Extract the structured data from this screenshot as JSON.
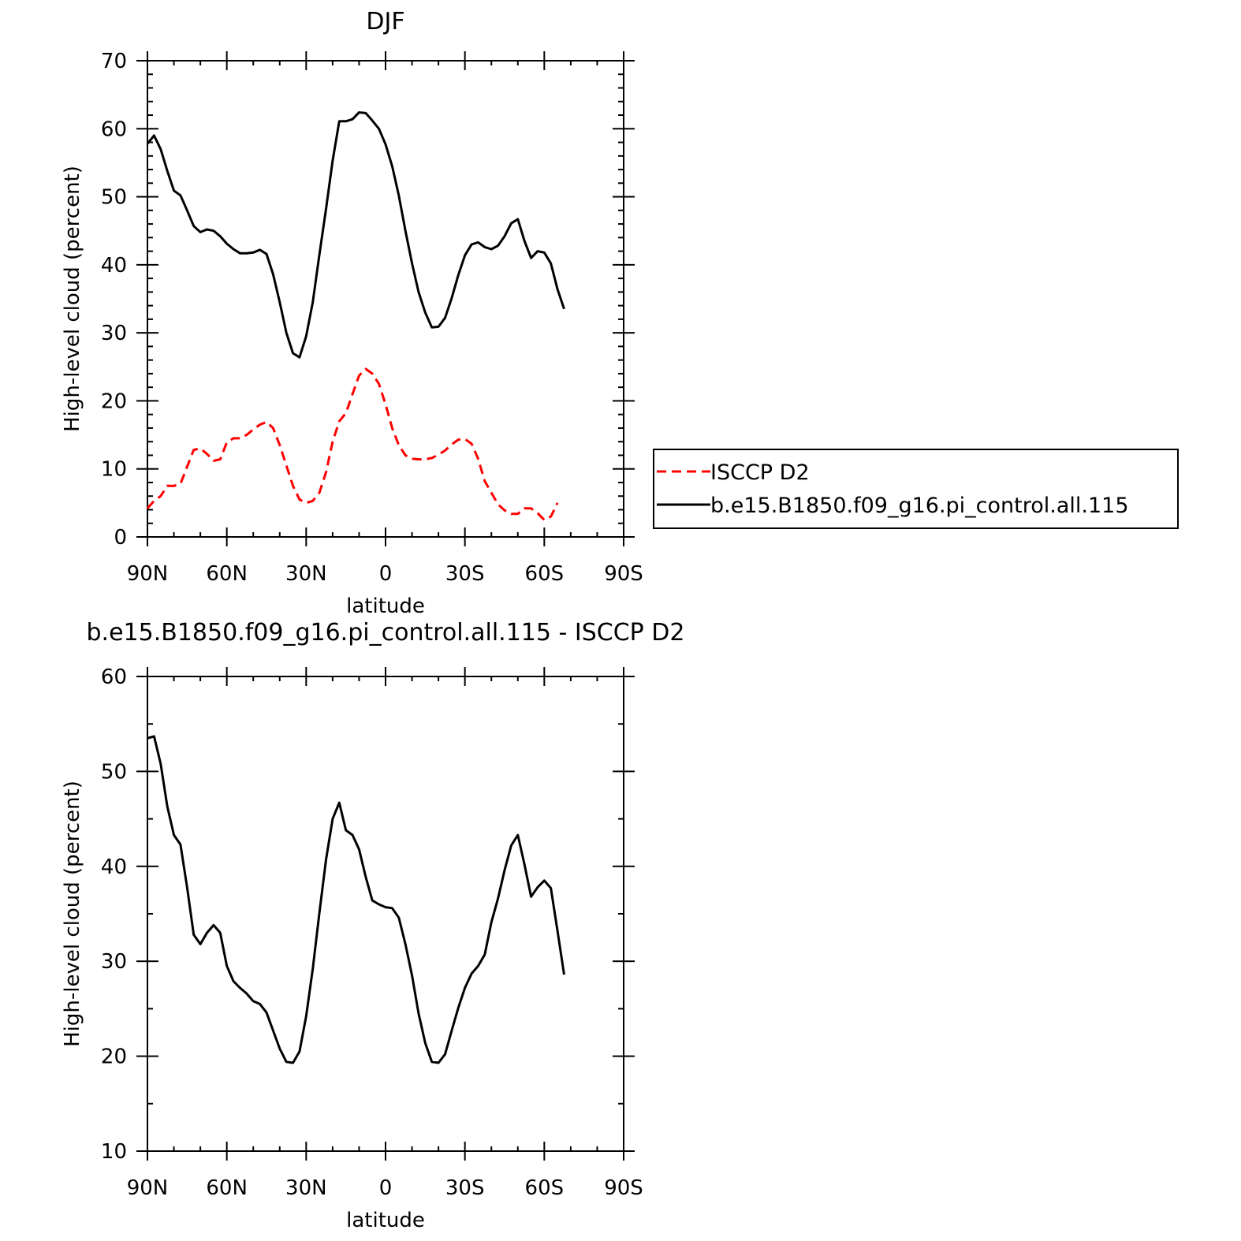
{
  "chart_data": [
    {
      "type": "line",
      "title": "DJF",
      "xlabel": "latitude",
      "ylabel": "High-level cloud (percent)",
      "xlim": [
        90,
        -90
      ],
      "ylim": [
        0,
        70
      ],
      "x_ticks": [
        {
          "value": 90,
          "label": "90N"
        },
        {
          "value": 60,
          "label": "60N"
        },
        {
          "value": 30,
          "label": "30N"
        },
        {
          "value": 0,
          "label": "0"
        },
        {
          "value": -30,
          "label": "30S"
        },
        {
          "value": -60,
          "label": "60S"
        },
        {
          "value": -90,
          "label": "90S"
        }
      ],
      "y_ticks": [
        {
          "value": 0,
          "label": "0"
        },
        {
          "value": 10,
          "label": "10"
        },
        {
          "value": 20,
          "label": "20"
        },
        {
          "value": 30,
          "label": "30"
        },
        {
          "value": 40,
          "label": "40"
        },
        {
          "value": 50,
          "label": "50"
        },
        {
          "value": 60,
          "label": "60"
        },
        {
          "value": 70,
          "label": "70"
        }
      ],
      "grid": false,
      "legend": {
        "placement": "right"
      },
      "series": [
        {
          "name": "ISCCP D2",
          "color": "#ff0000",
          "style": "dashed",
          "points": [
            [
              90,
              4.2
            ],
            [
              87.5,
              5.3
            ],
            [
              85,
              6.0
            ],
            [
              82.5,
              7.5
            ],
            [
              80,
              7.5
            ],
            [
              77.5,
              7.8
            ],
            [
              75,
              10.3
            ],
            [
              72.5,
              12.8
            ],
            [
              70,
              13.0
            ],
            [
              67.5,
              12.2
            ],
            [
              65,
              11.2
            ],
            [
              62.5,
              11.4
            ],
            [
              60,
              13.9
            ],
            [
              57.5,
              14.5
            ],
            [
              55,
              14.5
            ],
            [
              52.5,
              15.0
            ],
            [
              50,
              15.8
            ],
            [
              47.5,
              16.5
            ],
            [
              45,
              16.9
            ],
            [
              42.5,
              16.0
            ],
            [
              40,
              13.5
            ],
            [
              37.5,
              10.5
            ],
            [
              35,
              7.5
            ],
            [
              32.5,
              5.5
            ],
            [
              30,
              5.0
            ],
            [
              27.5,
              5.3
            ],
            [
              25,
              6.5
            ],
            [
              22.5,
              9.5
            ],
            [
              20,
              14.0
            ],
            [
              17.5,
              17.0
            ],
            [
              15,
              18.2
            ],
            [
              12.5,
              21.0
            ],
            [
              10,
              23.7
            ],
            [
              7.5,
              24.7
            ],
            [
              5,
              24.0
            ],
            [
              2.5,
              22.5
            ],
            [
              0,
              19.5
            ],
            [
              -2.5,
              16.0
            ],
            [
              -5,
              13.5
            ],
            [
              -7.5,
              12.0
            ],
            [
              -10,
              11.5
            ],
            [
              -12.5,
              11.4
            ],
            [
              -15,
              11.4
            ],
            [
              -17.5,
              11.6
            ],
            [
              -20,
              12.1
            ],
            [
              -22.5,
              12.7
            ],
            [
              -25,
              13.6
            ],
            [
              -27.5,
              14.3
            ],
            [
              -30,
              14.4
            ],
            [
              -32.5,
              13.7
            ],
            [
              -35,
              11.5
            ],
            [
              -37.5,
              8.2
            ],
            [
              -40,
              6.5
            ],
            [
              -42.5,
              4.8
            ],
            [
              -45,
              3.9
            ],
            [
              -47.5,
              3.4
            ],
            [
              -50,
              3.4
            ],
            [
              -52.5,
              4.2
            ],
            [
              -55,
              4.2
            ],
            [
              -57.5,
              3.5
            ],
            [
              -60,
              2.5
            ],
            [
              -62.5,
              3.0
            ],
            [
              -65,
              5.0
            ]
          ]
        },
        {
          "name": "b.e15.B1850.f09_g16.pi_control.all.115",
          "color": "#000000",
          "style": "solid",
          "points": [
            [
              90,
              57.8
            ],
            [
              87.5,
              59.0
            ],
            [
              85,
              57.0
            ],
            [
              82.5,
              53.8
            ],
            [
              80,
              50.9
            ],
            [
              77.5,
              50.2
            ],
            [
              75,
              48.0
            ],
            [
              72.5,
              45.7
            ],
            [
              70,
              44.8
            ],
            [
              67.5,
              45.2
            ],
            [
              65,
              45.0
            ],
            [
              62.5,
              44.2
            ],
            [
              60,
              43.1
            ],
            [
              57.5,
              42.3
            ],
            [
              55,
              41.7
            ],
            [
              52.5,
              41.7
            ],
            [
              50,
              41.8
            ],
            [
              47.5,
              42.2
            ],
            [
              45,
              41.6
            ],
            [
              42.5,
              38.6
            ],
            [
              40,
              34.5
            ],
            [
              37.5,
              30.0
            ],
            [
              35,
              27.0
            ],
            [
              32.5,
              26.4
            ],
            [
              30,
              29.5
            ],
            [
              27.5,
              34.5
            ],
            [
              25,
              41.5
            ],
            [
              22.5,
              48.2
            ],
            [
              20,
              55.3
            ],
            [
              17.5,
              61.1
            ],
            [
              15,
              61.1
            ],
            [
              12.5,
              61.4
            ],
            [
              10,
              62.4
            ],
            [
              7.5,
              62.3
            ],
            [
              5,
              61.2
            ],
            [
              2.5,
              60.0
            ],
            [
              0,
              57.7
            ],
            [
              -2.5,
              54.5
            ],
            [
              -5,
              50.2
            ],
            [
              -7.5,
              45.0
            ],
            [
              -10,
              40.2
            ],
            [
              -12.5,
              36.0
            ],
            [
              -15,
              33.0
            ],
            [
              -17.5,
              30.8
            ],
            [
              -20,
              30.9
            ],
            [
              -22.5,
              32.2
            ],
            [
              -25,
              35.1
            ],
            [
              -27.5,
              38.5
            ],
            [
              -30,
              41.4
            ],
            [
              -32.5,
              43.0
            ],
            [
              -35,
              43.3
            ],
            [
              -37.5,
              42.6
            ],
            [
              -40,
              42.3
            ],
            [
              -42.5,
              42.8
            ],
            [
              -45,
              44.2
            ],
            [
              -47.5,
              46.1
            ],
            [
              -50,
              46.7
            ],
            [
              -52.5,
              43.5
            ],
            [
              -55,
              41.0
            ],
            [
              -57.5,
              42.0
            ],
            [
              -60,
              41.8
            ],
            [
              -62.5,
              40.2
            ],
            [
              -65,
              36.4
            ],
            [
              -67.5,
              33.5
            ]
          ]
        }
      ]
    },
    {
      "type": "line",
      "title": "b.e15.B1850.f09_g16.pi_control.all.115 - ISCCP D2",
      "xlabel": "latitude",
      "ylabel": "High-level cloud (percent)",
      "xlim": [
        90,
        -90
      ],
      "ylim": [
        10,
        60
      ],
      "x_ticks": [
        {
          "value": 90,
          "label": "90N"
        },
        {
          "value": 60,
          "label": "60N"
        },
        {
          "value": 30,
          "label": "30N"
        },
        {
          "value": 0,
          "label": "0"
        },
        {
          "value": -30,
          "label": "30S"
        },
        {
          "value": -60,
          "label": "60S"
        },
        {
          "value": -90,
          "label": "90S"
        }
      ],
      "y_ticks": [
        {
          "value": 10,
          "label": "10"
        },
        {
          "value": 20,
          "label": "20"
        },
        {
          "value": 30,
          "label": "30"
        },
        {
          "value": 40,
          "label": "40"
        },
        {
          "value": 50,
          "label": "50"
        },
        {
          "value": 60,
          "label": "60"
        }
      ],
      "grid": false,
      "series": [
        {
          "color": "#000000",
          "style": "solid",
          "points": [
            [
              90,
              53.5
            ],
            [
              87.5,
              53.7
            ],
            [
              85,
              50.8
            ],
            [
              82.5,
              46.3
            ],
            [
              80,
              43.3
            ],
            [
              77.5,
              42.3
            ],
            [
              75,
              37.8
            ],
            [
              72.5,
              32.8
            ],
            [
              70,
              31.8
            ],
            [
              67.5,
              33.0
            ],
            [
              65,
              33.8
            ],
            [
              62.5,
              33.0
            ],
            [
              60,
              29.5
            ],
            [
              57.5,
              27.9
            ],
            [
              55,
              27.2
            ],
            [
              52.5,
              26.6
            ],
            [
              50,
              25.8
            ],
            [
              47.5,
              25.5
            ],
            [
              45,
              24.6
            ],
            [
              42.5,
              22.7
            ],
            [
              40,
              20.8
            ],
            [
              37.5,
              19.4
            ],
            [
              35,
              19.3
            ],
            [
              32.5,
              20.5
            ],
            [
              30,
              24.2
            ],
            [
              27.5,
              29.2
            ],
            [
              25,
              35.1
            ],
            [
              22.5,
              40.7
            ],
            [
              20,
              45.0
            ],
            [
              17.5,
              46.7
            ],
            [
              15,
              43.8
            ],
            [
              12.5,
              43.3
            ],
            [
              10,
              41.8
            ],
            [
              7.5,
              38.9
            ],
            [
              5,
              36.4
            ],
            [
              2.5,
              36.0
            ],
            [
              0,
              35.7
            ],
            [
              -2.5,
              35.6
            ],
            [
              -5,
              34.6
            ],
            [
              -7.5,
              31.8
            ],
            [
              -10,
              28.5
            ],
            [
              -12.5,
              24.5
            ],
            [
              -15,
              21.4
            ],
            [
              -17.5,
              19.4
            ],
            [
              -20,
              19.3
            ],
            [
              -22.5,
              20.2
            ],
            [
              -25,
              22.7
            ],
            [
              -27.5,
              25.1
            ],
            [
              -30,
              27.2
            ],
            [
              -32.5,
              28.7
            ],
            [
              -35,
              29.5
            ],
            [
              -37.5,
              30.7
            ],
            [
              -40,
              34.1
            ],
            [
              -42.5,
              36.6
            ],
            [
              -45,
              39.6
            ],
            [
              -47.5,
              42.2
            ],
            [
              -50,
              43.3
            ],
            [
              -52.5,
              40.2
            ],
            [
              -55,
              36.8
            ],
            [
              -57.5,
              37.8
            ],
            [
              -60,
              38.5
            ],
            [
              -62.5,
              37.7
            ],
            [
              -65,
              33.2
            ],
            [
              -67.5,
              28.6
            ]
          ]
        }
      ]
    }
  ]
}
